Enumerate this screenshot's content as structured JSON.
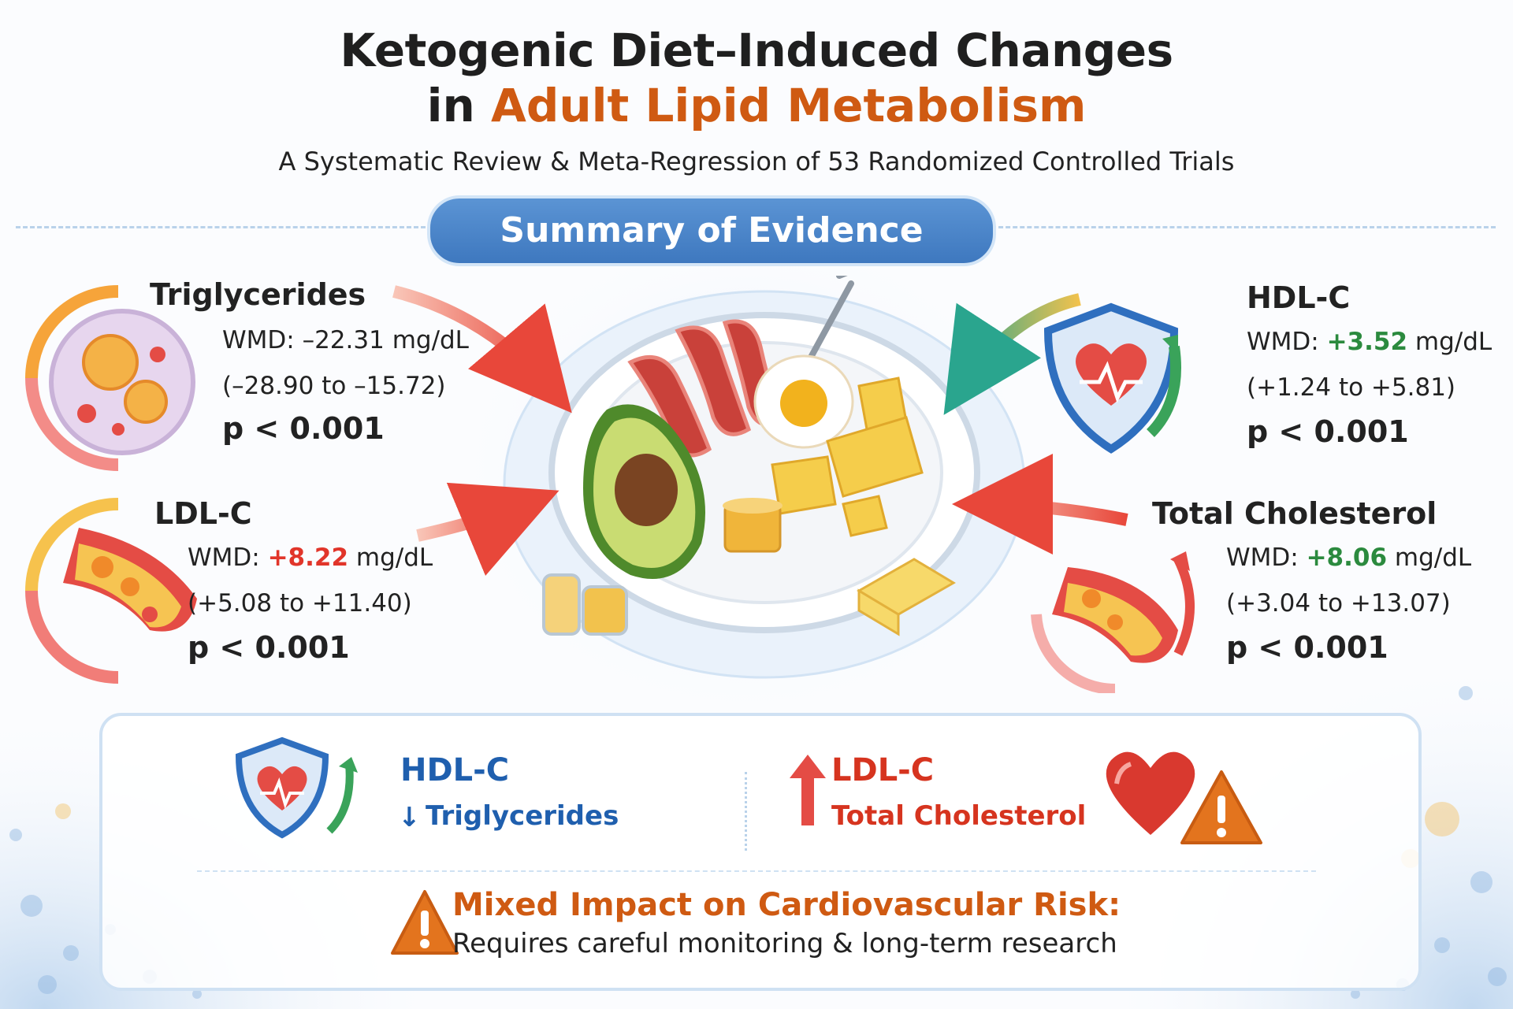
{
  "header": {
    "title_line1": "Ketogenic Diet–Induced Changes",
    "title_line2_prefix": "in",
    "title_line2_highlight": "Adult Lipid Metabolism",
    "subtitle": "A Systematic Review & Meta-Regression of 53 Randomized Controlled Trials"
  },
  "section_label": "Summary of Evidence",
  "metrics": {
    "triglycerides": {
      "name": "Triglycerides",
      "wmd_label": "WMD:",
      "wmd_value": "–22.31",
      "unit": "mg/dL",
      "ci": "(–28.90 to –15.72)",
      "p": "p < 0.001"
    },
    "ldl": {
      "name": "LDL-C",
      "wmd_label": "WMD:",
      "wmd_value": "+8.22",
      "unit": "mg/dL",
      "ci": "(+5.08 to +11.40)",
      "p": "p < 0.001"
    },
    "hdl": {
      "name": "HDL-C",
      "wmd_label": "WMD:",
      "wmd_value": "+3.52",
      "unit": "mg/dL",
      "ci": "(+1.24 to +5.81)",
      "p": "p < 0.001"
    },
    "total_chol": {
      "name": "Total Cholesterol",
      "wmd_label": "WMD:",
      "wmd_value": "+8.06",
      "unit": "mg/dL",
      "ci": "(+3.04 to +13.07)",
      "p": "p < 0.001"
    }
  },
  "summary": {
    "left_line1": "HDL-C",
    "left_line2": "Triglycerides",
    "right_line1": "LDL-C",
    "right_line2": "Total Cholesterol",
    "risk_title": "Mixed Impact on Cardiovascular Risk:",
    "risk_sub": "Requires careful monitoring & long-term research"
  },
  "icons": [
    "shield-heart-icon",
    "plate-food-icon",
    "warning-icon",
    "heart-icon",
    "artery-icon",
    "cell-icon",
    "fork-icon",
    "oil-bottle-icon"
  ],
  "colors": {
    "accent_orange": "#cf5a12",
    "blue": "#3e78bf",
    "red": "#e1352a",
    "green": "#2b8a3e"
  }
}
